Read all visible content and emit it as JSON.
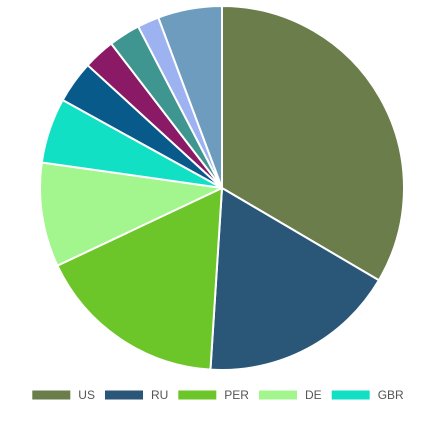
{
  "chart_data": {
    "type": "pie",
    "title": "",
    "start_angle_deg": 0,
    "direction": "clockwise",
    "slices": [
      {
        "label": "US",
        "value": 34.7,
        "color": "#6a7d4a",
        "in_legend": true
      },
      {
        "label": "RU",
        "value": 18.2,
        "color": "#2a5678",
        "in_legend": true
      },
      {
        "label": "PER",
        "value": 17.6,
        "color": "#6cc62a",
        "in_legend": true
      },
      {
        "label": "DE",
        "value": 9.6,
        "color": "#a3f58d",
        "in_legend": true
      },
      {
        "label": "GBR",
        "value": 6.0,
        "color": "#12e0c4",
        "in_legend": true
      },
      {
        "label": "",
        "value": 3.9,
        "color": "#075a8a",
        "in_legend": false
      },
      {
        "label": "",
        "value": 2.9,
        "color": "#8a1a66",
        "in_legend": false
      },
      {
        "label": "",
        "value": 2.9,
        "color": "#3f9690",
        "in_legend": false
      },
      {
        "label": "",
        "value": 2.0,
        "color": "#9db2f0",
        "in_legend": false
      },
      {
        "label": "",
        "value": 5.9,
        "color": "#6e9cbf",
        "in_legend": false
      }
    ],
    "legend_position": "bottom"
  }
}
